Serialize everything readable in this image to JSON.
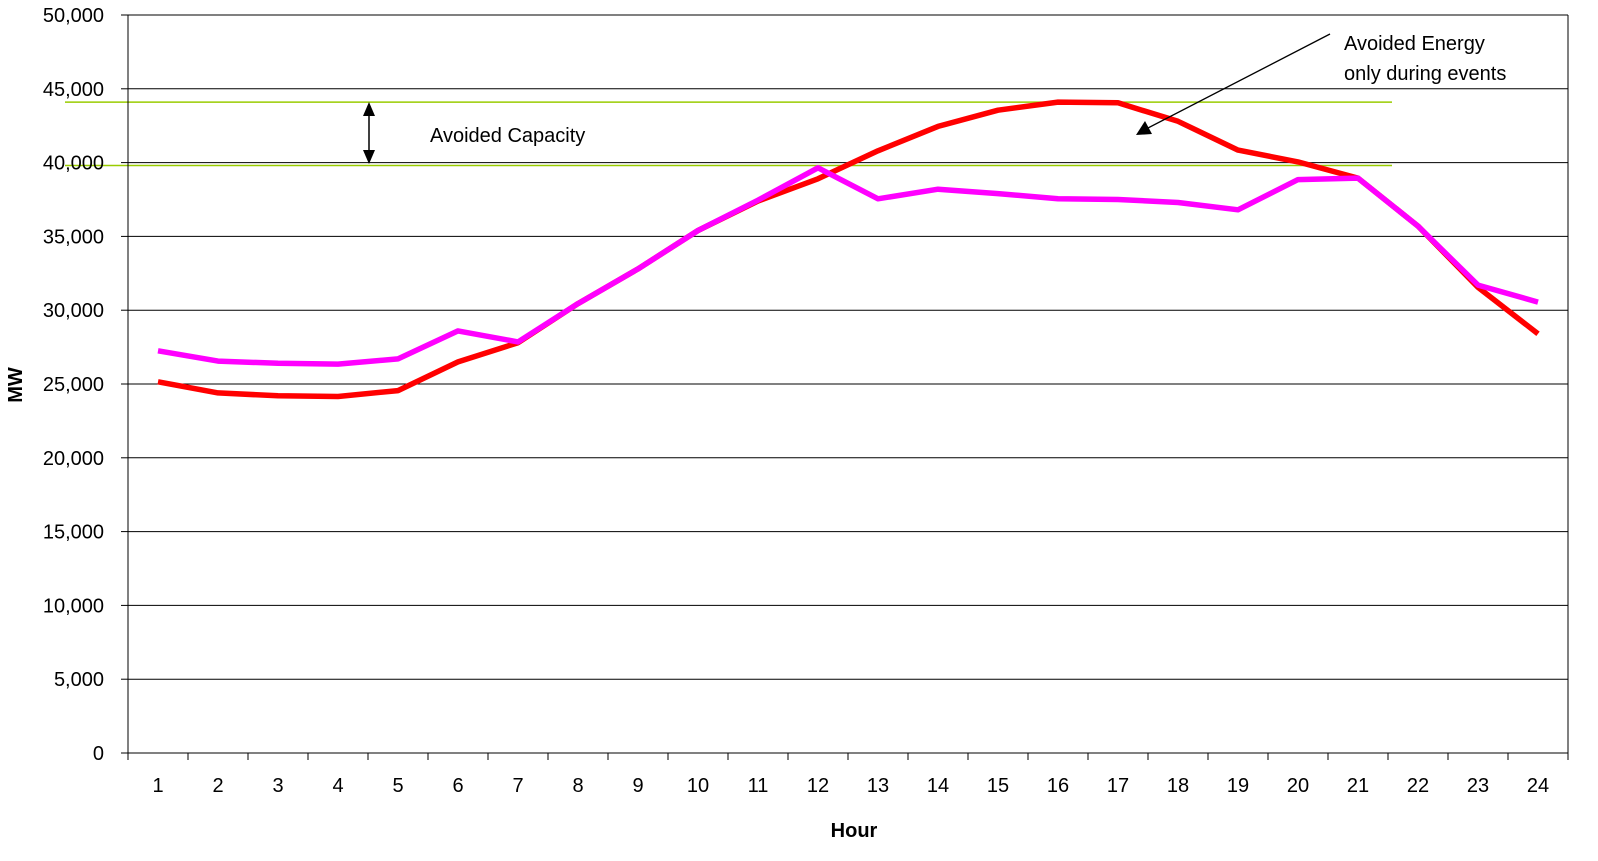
{
  "chart_data": {
    "type": "line",
    "title": "",
    "xlabel": "Hour",
    "ylabel": "MW",
    "ylim": [
      0,
      50000
    ],
    "yticks": [
      0,
      5000,
      10000,
      15000,
      20000,
      25000,
      30000,
      35000,
      40000,
      45000,
      50000
    ],
    "ytick_labels": [
      "0",
      "5,000",
      "10,000",
      "15,000",
      "20,000",
      "25,000",
      "30,000",
      "35,000",
      "40,000",
      "45,000",
      "50,000"
    ],
    "categories": [
      "1",
      "2",
      "3",
      "4",
      "5",
      "6",
      "7",
      "8",
      "9",
      "10",
      "11",
      "12",
      "13",
      "14",
      "15",
      "16",
      "17",
      "18",
      "19",
      "20",
      "21",
      "22",
      "23",
      "24"
    ],
    "grid": true,
    "series": [
      {
        "color": "#ff0000",
        "values": [
          25150,
          24400,
          24200,
          24150,
          24550,
          26500,
          27800,
          30450,
          32800,
          35400,
          37400,
          38900,
          40800,
          42450,
          43550,
          44100,
          44050,
          42800,
          40850,
          40050,
          38950,
          35700,
          31550,
          28400
        ]
      },
      {
        "color": "#ff00ff",
        "values": [
          27250,
          26550,
          26400,
          26350,
          26700,
          28600,
          27850,
          30450,
          32800,
          35400,
          37450,
          39650,
          37550,
          38200,
          37900,
          37550,
          37500,
          37300,
          36800,
          38850,
          38950,
          35700,
          31700,
          30550
        ]
      }
    ],
    "reference_lines": [
      {
        "y": 44100,
        "color": "#99cc00"
      },
      {
        "y": 39800,
        "color": "#99cc00"
      }
    ],
    "annotations": [
      {
        "text": "Avoided Capacity"
      },
      {
        "text": "Avoided Energy",
        "text2": "only during events"
      }
    ]
  }
}
